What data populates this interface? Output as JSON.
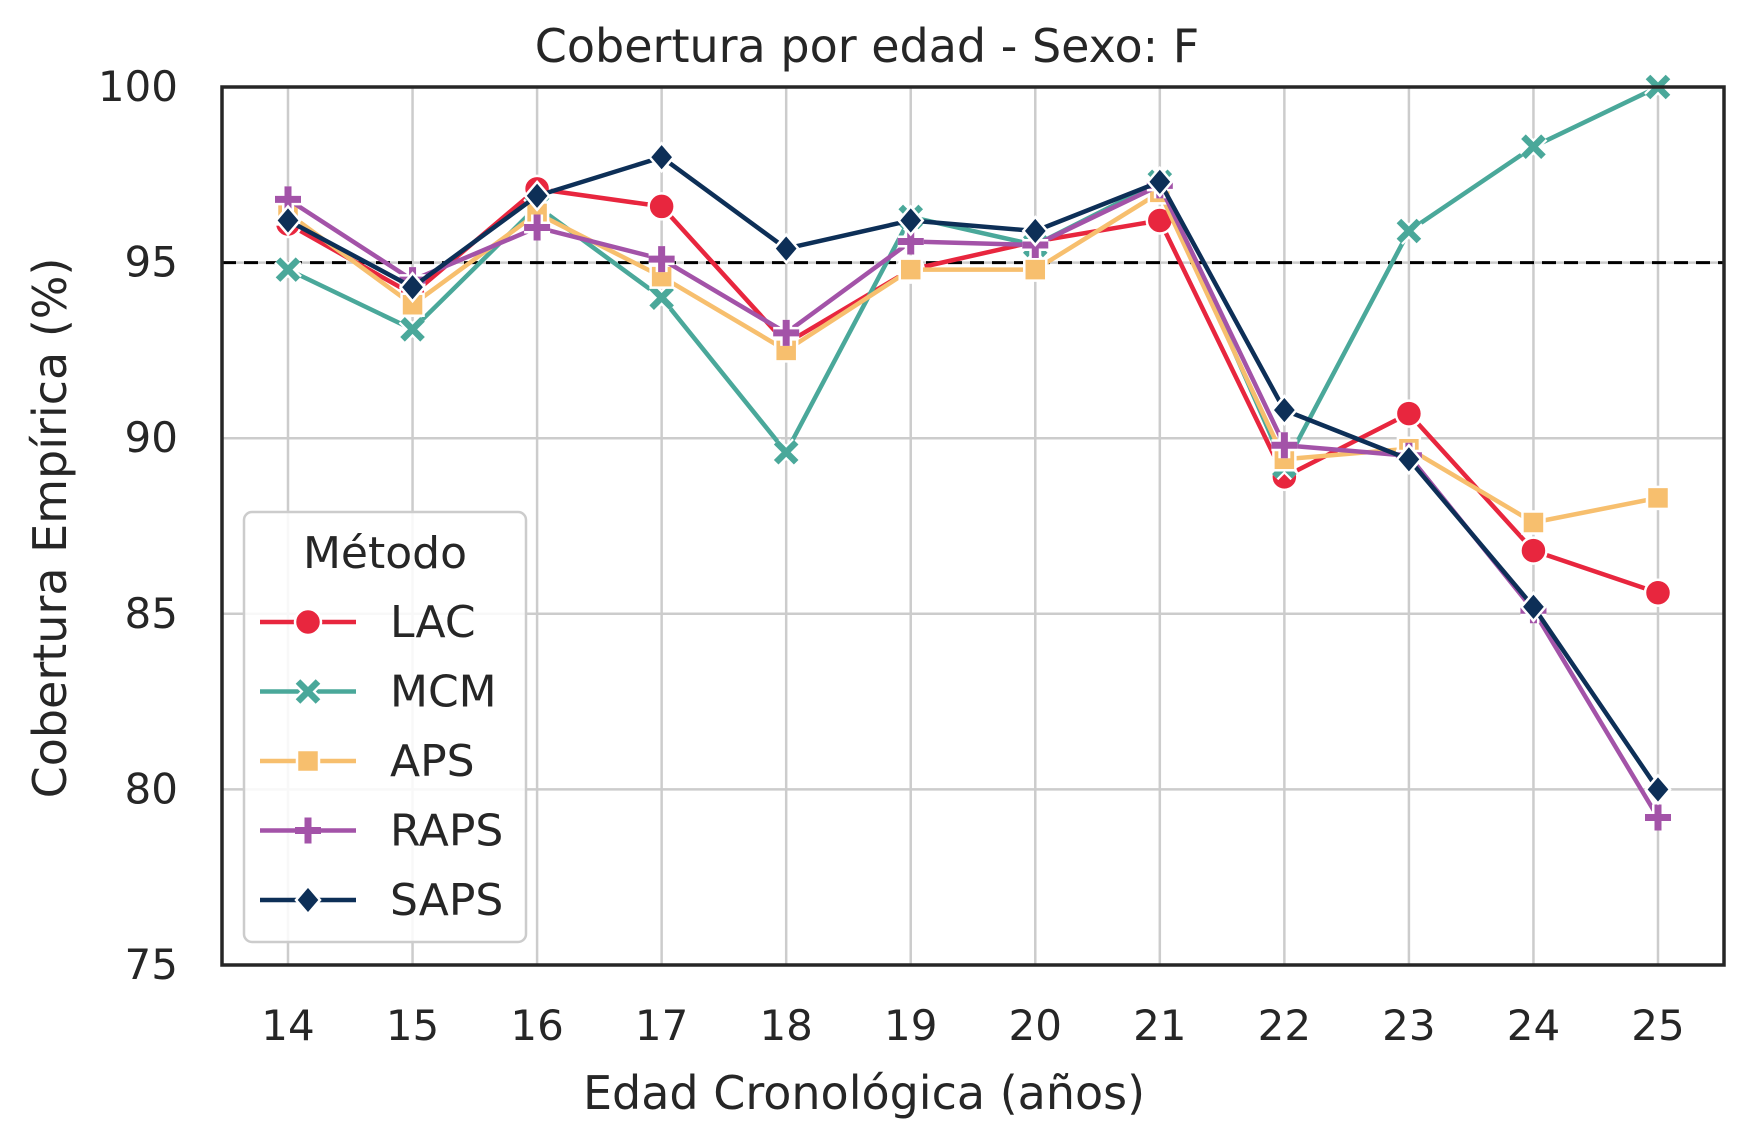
{
  "chart_data": {
    "type": "line",
    "title": "Cobertura por edad - Sexo: F",
    "xlabel": "Edad Cronológica (años)",
    "ylabel": "Cobertura Empírica (%)",
    "x": [
      14,
      15,
      16,
      17,
      18,
      19,
      20,
      21,
      22,
      23,
      24,
      25
    ],
    "ylim": [
      75,
      100
    ],
    "yticks": [
      75,
      80,
      85,
      90,
      95,
      100
    ],
    "reference_line": {
      "y": 95,
      "style": "dashed",
      "color": "#000000"
    },
    "grid": true,
    "legend": {
      "title": "Método",
      "placement": "lower-left"
    },
    "series": [
      {
        "name": "LAC",
        "color": "#E8263E",
        "marker": "circle",
        "values": [
          96.1,
          94.1,
          97.1,
          96.6,
          92.7,
          94.8,
          95.6,
          96.2,
          88.9,
          90.7,
          86.8,
          85.6
        ]
      },
      {
        "name": "MCM",
        "color": "#4AA89A",
        "marker": "x",
        "values": [
          94.8,
          93.1,
          96.6,
          94.0,
          89.6,
          96.3,
          95.5,
          97.3,
          89.2,
          95.9,
          98.3,
          100.0
        ]
      },
      {
        "name": "APS",
        "color": "#F7BF6E",
        "marker": "square",
        "values": [
          96.4,
          93.8,
          96.4,
          94.6,
          92.5,
          94.8,
          94.8,
          97.0,
          89.4,
          89.7,
          87.6,
          88.3
        ]
      },
      {
        "name": "RAPS",
        "color": "#A353A8",
        "marker": "plus",
        "values": [
          96.8,
          94.5,
          96.0,
          95.1,
          93.0,
          95.6,
          95.5,
          97.2,
          89.8,
          89.5,
          85.1,
          79.2
        ]
      },
      {
        "name": "SAPS",
        "color": "#0D2F57",
        "marker": "diamond",
        "values": [
          96.2,
          94.3,
          96.9,
          98.0,
          95.4,
          96.2,
          95.9,
          97.3,
          90.8,
          89.4,
          85.2,
          80.0
        ]
      }
    ]
  }
}
